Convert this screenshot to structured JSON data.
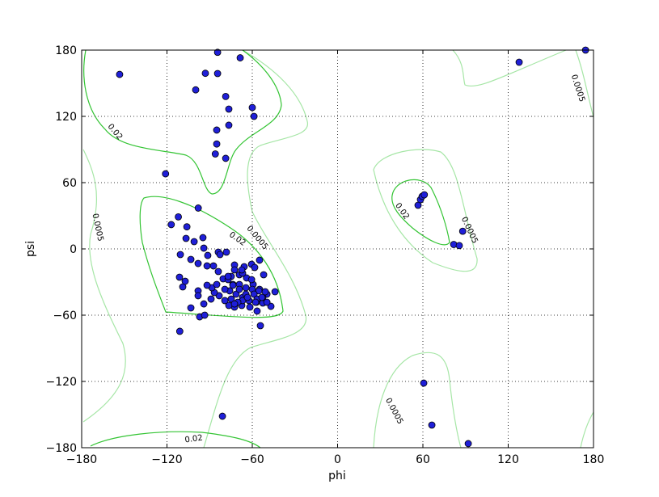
{
  "chart_data": {
    "type": "scatter",
    "xlabel": "phi",
    "ylabel": "psi",
    "xlim": [
      -180,
      180
    ],
    "ylim": [
      -180,
      180
    ],
    "xticks": [
      {
        "value": -180,
        "label": "−180"
      },
      {
        "value": -120,
        "label": "−120"
      },
      {
        "value": -60,
        "label": "−60"
      },
      0,
      60,
      120,
      180
    ],
    "yticks": [
      {
        "value": -180,
        "label": "−180"
      },
      {
        "value": -120,
        "label": "−120"
      },
      {
        "value": -60,
        "label": "−60"
      },
      0,
      60,
      120,
      180
    ],
    "grid": true,
    "color": "#1f1fd8",
    "contour_labels": [
      "0.02",
      "0.02",
      "0.02",
      "0.02",
      "0.0005",
      "0.0005",
      "0.0005",
      "0.0005",
      "0.0005"
    ],
    "x": [
      -153.3,
      -84.4,
      -84.4,
      -68.5,
      -93,
      -99.8,
      -78.7,
      -76.5,
      -60,
      -58.8,
      -76.5,
      -85,
      -85,
      -86,
      -78.7,
      -121,
      -98,
      -112,
      -106,
      -117,
      56.6,
      58.3,
      59.5,
      61,
      88,
      81.7,
      85.6,
      127.7,
      174.4,
      60.6,
      66.3,
      91.9,
      -81,
      -54.3,
      -111,
      -97,
      -110.6,
      -106.6,
      -100.9,
      -94.7,
      -111.2,
      -108.9,
      -107.2,
      -103.2,
      -98.1,
      -94.1,
      -91.3,
      -87.3,
      -83.9,
      -82.7,
      -91.8,
      -78.2,
      -72.5,
      -65.7,
      -60.5,
      -58.3,
      -54.9,
      -52,
      -44,
      -46.9,
      -52.6,
      -56.6,
      -61.7,
      -67.4,
      -72.5,
      -76.5,
      -79.3,
      -83.3,
      -86.7,
      -88.4,
      -91.8,
      -98.1,
      -98.1,
      -103.2,
      -94.1,
      -93.5,
      -89,
      -85,
      -80.5,
      -74.8,
      -69.1,
      -64,
      -59.4,
      -54.9,
      -49.7,
      -52.6,
      -57.1,
      -62.3,
      -66.8,
      -71.4,
      -75.9,
      -73.6,
      -69.1,
      -64.5,
      -60,
      -55.4,
      -58.8,
      -66.8,
      -70.2,
      -74.8,
      -79.3,
      -83.9,
      -77,
      -72.5,
      -66.8,
      -60.5,
      -50.9,
      -56.6,
      -64.5,
      -69.1,
      -73.6,
      -77,
      -63.4,
      -57.7,
      -53.2,
      -49.7,
      -67.4,
      -72.5
    ],
    "series": [
      {
        "values": [
          158,
          178,
          158.8,
          173,
          159,
          144,
          138,
          126.6,
          128,
          120,
          112,
          107.6,
          95,
          86,
          82,
          68,
          37,
          29,
          20,
          22,
          39.5,
          44.6,
          47.6,
          49,
          16,
          4,
          3,
          169,
          180,
          -121.5,
          -159.5,
          -176.3,
          -151.5,
          -69.5,
          -74.6,
          -61.5,
          -5.1,
          9.5,
          6.6,
          10.2,
          -25.6,
          -34.4,
          -29.3,
          -9.5,
          -13.2,
          0.7,
          -5.9,
          -15.4,
          -2.9,
          -5.1,
          -15.4,
          -2.9,
          -14.6,
          -16.1,
          -13.9,
          -16.8,
          -10.2,
          -23.4,
          -38.8,
          -52,
          -49,
          -56.3,
          -52.7,
          -51.2,
          -52.7,
          -51.2,
          -46.8,
          -42.4,
          -39.5,
          -35.1,
          -32.9,
          -38,
          -42.4,
          -53.4,
          -49.8,
          -60,
          -45.4,
          -32.2,
          -27.1,
          -24.9,
          -23.4,
          -26.3,
          -32.2,
          -36.6,
          -41,
          -43.9,
          -48.3,
          -46.8,
          -43.9,
          -41,
          -38,
          -32.2,
          -32.2,
          -35.1,
          -36.6,
          -38,
          -41,
          -46.8,
          -48.3,
          -45.4,
          -36.6,
          -20.5,
          -27.8,
          -19,
          -22,
          -27.8,
          -38.8,
          -45.4,
          -41,
          -36.6,
          -32.9,
          -24.9,
          -43.9,
          -48.3,
          -43.9,
          -48.3,
          -19,
          -49.8
        ]
      }
    ]
  }
}
